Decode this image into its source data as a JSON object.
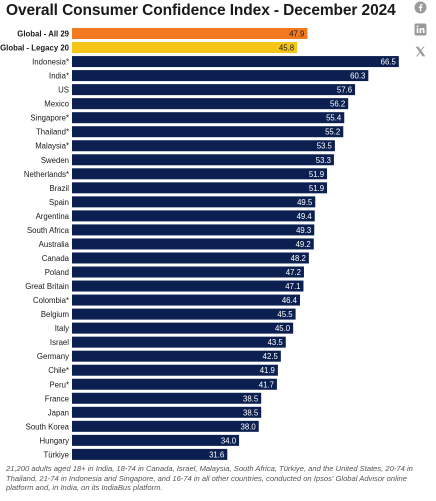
{
  "header": {
    "title": "Overall Consumer Confidence Index - December 2024"
  },
  "share_icons": [
    "facebook-icon",
    "linkedin-icon",
    "x-icon"
  ],
  "colors": {
    "primary_bar": "#0b2050",
    "global_all_bar": "#f47a20",
    "global_legacy_bar": "#f5c518",
    "bar_value_text": "#ffffff",
    "global_value_text": "#1a1a1a",
    "icon_color": "#9a9a9a"
  },
  "chart_data": {
    "type": "bar",
    "orientation": "horizontal",
    "title": "Overall Consumer Confidence Index - December 2024",
    "xlim": [
      0,
      70
    ],
    "grid": false,
    "legend": "none",
    "categories": [
      "Global - All 29",
      "Global - Legacy 20",
      "Indonesia*",
      "India*",
      "US",
      "Mexico",
      "Singapore*",
      "Thailand*",
      "Malaysia*",
      "Sweden",
      "Netherlands*",
      "Brazil",
      "Spain",
      "Argentina",
      "South Africa",
      "Australia",
      "Canada",
      "Poland",
      "Great Britain",
      "Colombia*",
      "Belgium",
      "Italy",
      "Israel",
      "Germany",
      "Chile*",
      "Peru*",
      "France",
      "Japan",
      "South Korea",
      "Hungary",
      "Türkiye"
    ],
    "values": [
      47.9,
      45.8,
      66.5,
      60.3,
      57.6,
      56.2,
      55.4,
      55.2,
      53.5,
      53.3,
      51.9,
      51.9,
      49.5,
      49.4,
      49.3,
      49.2,
      48.2,
      47.2,
      47.1,
      46.4,
      45.5,
      45.0,
      43.5,
      42.5,
      41.9,
      41.7,
      38.5,
      38.5,
      38.0,
      34.0,
      31.6
    ],
    "value_labels": [
      "47.9",
      "45.8",
      "66.5",
      "60.3",
      "57.6",
      "56.2",
      "55.4",
      "55.2",
      "53.5",
      "53.3",
      "51.9",
      "51.9",
      "49.5",
      "49.4",
      "49.3",
      "49.2",
      "48.2",
      "47.2",
      "47.1",
      "46.4",
      "45.5",
      "45.0",
      "43.5",
      "42.5",
      "41.9",
      "41.7",
      "38.5",
      "38.5",
      "38.0",
      "34.0",
      "31.6"
    ],
    "highlighted": {
      "Global - All 29": "#f47a20",
      "Global - Legacy 20": "#f5c518"
    }
  },
  "footnote": "21,200 adults aged 18+ in India, 18-74 in Canada, Israel, Malaysia, South Africa, Türkiye, and the United States, 20-74 in Thailand, 21-74 in Indonesia and Singapore, and 16-74 in all other countries, conducted on Ipsos' Global Advisor online platform and, in India, on its IndiaBus platform."
}
